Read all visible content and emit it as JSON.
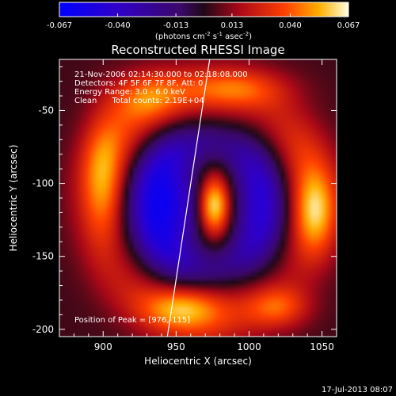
{
  "chart_data": {
    "type": "heatmap",
    "title": "Reconstructed RHESSI Image",
    "xlabel": "Heliocentric X (arcsec)",
    "ylabel": "Heliocentric Y (arcsec)",
    "xlim": [
      870,
      1060
    ],
    "ylim": [
      -205,
      -15
    ],
    "x_ticks": [
      900,
      950,
      1000,
      1050
    ],
    "y_ticks": [
      -50,
      -100,
      -150,
      -200
    ],
    "colorbar": {
      "ticks": [
        "-0.067",
        "-0.040",
        "-0.013",
        "0.013",
        "0.040",
        "0.067"
      ],
      "range": [
        -0.067,
        0.067
      ],
      "unit_parts": [
        "(photons cm",
        "-2",
        " s",
        "-1",
        " asec",
        "-2",
        ")"
      ]
    },
    "info_lines": [
      "21-Nov-2006 02:14:30.000 to 02:18:08.000",
      "Detectors: 4F 5F 6F 7F 8F, Att: 0",
      "Energy Range: 3.0 - 6.0 keV",
      "Clean      Total counts: 2.19E+04"
    ],
    "peak_label": "Position of Peak = [976,-115]",
    "peak": {
      "x": 976,
      "y": -115,
      "value": 0.067
    },
    "limb_line": [
      [
        944,
        -205
      ],
      [
        973,
        -15
      ]
    ],
    "features": [
      {
        "x": 976,
        "y": -115,
        "amp": 0.067,
        "sigma_x": 8,
        "sigma_y": 15
      },
      {
        "x": 945,
        "y": -115,
        "amp": -0.055,
        "sigma_x": 16,
        "sigma_y": 28
      },
      {
        "x": 1005,
        "y": -115,
        "amp": -0.03,
        "sigma_x": 14,
        "sigma_y": 30
      },
      {
        "x": 990,
        "y": -35,
        "amp": 0.03,
        "sigma_x": 25,
        "sigma_y": 10
      },
      {
        "x": 930,
        "y": -40,
        "amp": 0.025,
        "sigma_x": 18,
        "sigma_y": 12
      },
      {
        "x": 900,
        "y": -100,
        "amp": 0.03,
        "sigma_x": 10,
        "sigma_y": 30
      },
      {
        "x": 1045,
        "y": -120,
        "amp": 0.035,
        "sigma_x": 10,
        "sigma_y": 20
      },
      {
        "x": 955,
        "y": -185,
        "amp": 0.03,
        "sigma_x": 18,
        "sigma_y": 10
      },
      {
        "x": 1020,
        "y": -185,
        "amp": 0.028,
        "sigma_x": 15,
        "sigma_y": 10
      }
    ],
    "ring": {
      "cx": 970,
      "cy": -115,
      "rx": 75,
      "ry": 78,
      "width": 14,
      "amp": 0.028
    },
    "grid": false
  },
  "footer_date": "17-Jul-2013 08:07"
}
